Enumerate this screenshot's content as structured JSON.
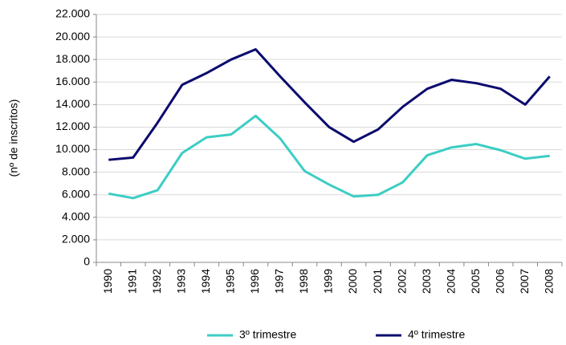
{
  "chart_data": {
    "type": "line",
    "y_label": "(nº de inscritos)",
    "categories": [
      "1990",
      "1991",
      "1992",
      "1993",
      "1994",
      "1995",
      "1996",
      "1997",
      "1998",
      "1999",
      "2000",
      "2001",
      "2002",
      "2003",
      "2004",
      "2005",
      "2006",
      "2007",
      "2008"
    ],
    "series": [
      {
        "name": "3º trimestre",
        "color": "#3ccdc4",
        "values": [
          6100,
          5700,
          6400,
          9700,
          11100,
          11350,
          13000,
          11000,
          8100,
          6900,
          5850,
          6000,
          7100,
          9500,
          10200,
          10500,
          9950,
          9200,
          9450
        ]
      },
      {
        "name": "4º trimestre",
        "color": "#0a0a6e",
        "values": [
          9100,
          9300,
          12400,
          15750,
          16800,
          18000,
          18900,
          16500,
          14200,
          12000,
          10700,
          11800,
          13800,
          15400,
          16200,
          15900,
          15400,
          14000,
          16500
        ]
      }
    ],
    "ylim": [
      0,
      22000
    ],
    "yticks": [
      0,
      {
        "value": 2000,
        "label": "2.000"
      },
      {
        "value": 4000,
        "label": "4.000"
      },
      {
        "value": 6000,
        "label": "6.000"
      },
      {
        "value": 8000,
        "label": "8.000"
      },
      {
        "value": 10000,
        "label": "10.000"
      },
      {
        "value": 12000,
        "label": "12.000"
      },
      {
        "value": 14000,
        "label": "14.000"
      },
      {
        "value": 16000,
        "label": "16.000"
      },
      {
        "value": 18000,
        "label": "18.000"
      },
      {
        "value": 20000,
        "label": "20.000"
      },
      {
        "value": 22000,
        "label": "22.000"
      }
    ],
    "grid": true,
    "legend": "bottom"
  }
}
